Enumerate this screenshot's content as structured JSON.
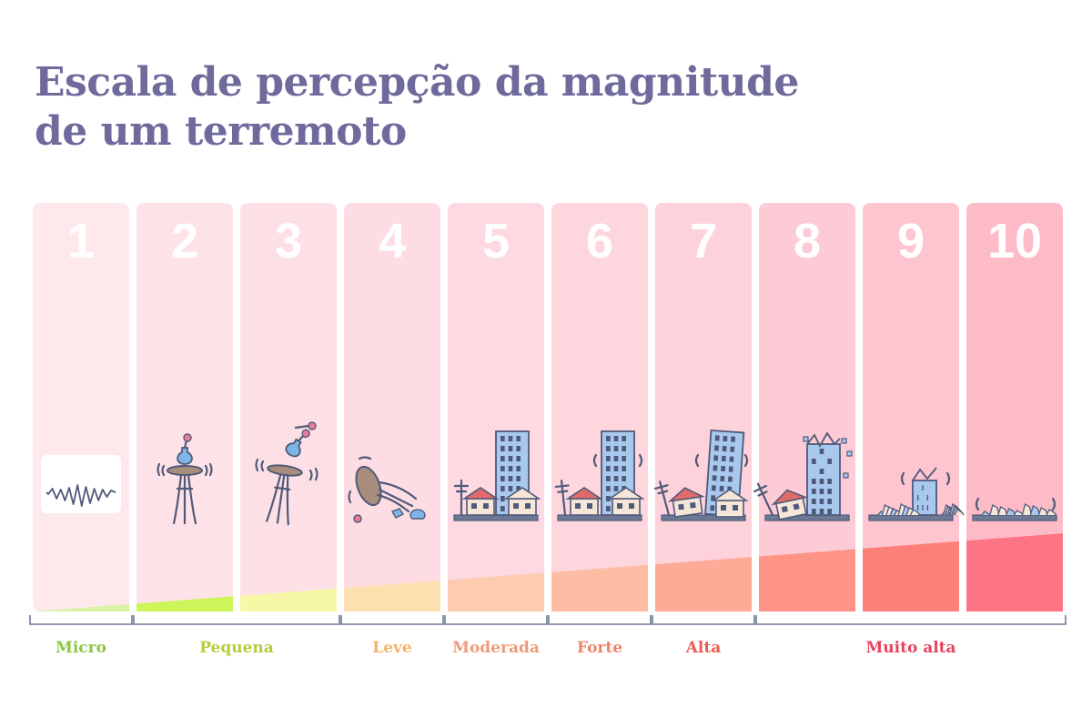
{
  "title": {
    "line1": "Escala de percepção da magnitude",
    "line2": "de um terremoto"
  },
  "colors": {
    "title": "#6e6a9c",
    "columns": [
      "#fde8ec",
      "#fde3e8",
      "#fde0e6",
      "#fddde3",
      "#fddae1",
      "#fdd6de",
      "#fdd2da",
      "#fdcbd5",
      "#fdc5d0",
      "#fdbac7"
    ],
    "fills": [
      "#d9f2a6",
      "#cdf55a",
      "#f7f7a8",
      "#fde0b0",
      "#fdcbb0",
      "#fdbca4",
      "#fdaa96",
      "#fd9486",
      "#fd8078",
      "#fd7484"
    ]
  },
  "columns": [
    {
      "number": "1",
      "icon": "seismograph-icon"
    },
    {
      "number": "2",
      "icon": "table-vase-icon"
    },
    {
      "number": "3",
      "icon": "table-vase-tipping-icon"
    },
    {
      "number": "4",
      "icon": "table-falling-icon"
    },
    {
      "number": "5",
      "icon": "buildings-icon"
    },
    {
      "number": "6",
      "icon": "buildings-shaking-icon"
    },
    {
      "number": "7",
      "icon": "buildings-bending-icon"
    },
    {
      "number": "8",
      "icon": "buildings-cracking-icon"
    },
    {
      "number": "9",
      "icon": "buildings-collapsing-icon"
    },
    {
      "number": "10",
      "icon": "rubble-icon"
    }
  ],
  "categories": [
    {
      "label": "Micro",
      "color": "#8cc63f",
      "from": 1,
      "to": 1
    },
    {
      "label": "Pequena",
      "color": "#b7cc3a",
      "from": 2,
      "to": 3
    },
    {
      "label": "Leve",
      "color": "#f5b366",
      "from": 4,
      "to": 4
    },
    {
      "label": "Moderada",
      "color": "#ee9a78",
      "from": 5,
      "to": 5
    },
    {
      "label": "Forte",
      "color": "#f08466",
      "from": 6,
      "to": 6
    },
    {
      "label": "Alta",
      "color": "#ec5c52",
      "from": 7,
      "to": 7
    },
    {
      "label": "Muito alta",
      "color": "#e8435e",
      "from": 8,
      "to": 10
    }
  ]
}
